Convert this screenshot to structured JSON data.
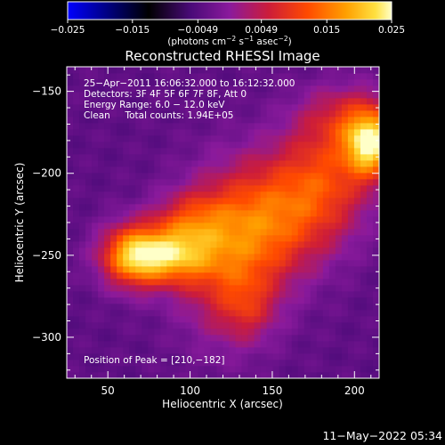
{
  "chart_data": {
    "type": "heatmap",
    "title": "Reconstructed RHESSI Image",
    "xlabel": "Heliocentric X (arcsec)",
    "ylabel": "Heliocentric Y (arcsec)",
    "xlim": [
      25,
      215
    ],
    "ylim": [
      -325,
      -135
    ],
    "x_ticks": [
      50,
      100,
      150,
      200
    ],
    "y_ticks": [
      -150,
      -200,
      -250,
      -300
    ],
    "colorbar": {
      "range": [
        -0.025,
        0.025
      ],
      "tick_values": [
        -0.025,
        -0.015,
        -0.0049,
        0.0049,
        0.015,
        0.025
      ],
      "tick_labels": [
        "−0.025",
        "−0.015",
        "−0.0049",
        "0.0049",
        "0.015",
        "0.025"
      ],
      "unit_base": "(photons cm",
      "unit_exp1": "−2",
      "unit_mid1": " s",
      "unit_exp2": "−1",
      "unit_mid2": " asec",
      "unit_exp3": "−2",
      "unit_end": ")"
    },
    "annotations": [
      "25−Apr−2011 16:06:32.000 to 16:12:32.000",
      "Detectors: 3F 4F 5F 6F 7F 8F, Att 0",
      "Energy Range: 6.0 − 12.0 keV",
      "Clean     Total counts: 1.94E+05"
    ],
    "peak_label": "Position of Peak = [210,−182]",
    "sources": [
      {
        "x": 82,
        "y": -250,
        "sx": 20,
        "sy": 12,
        "value": 0.023
      },
      {
        "x": 63,
        "y": -250,
        "sx": 12,
        "sy": 14,
        "value": 0.012
      },
      {
        "x": 100,
        "y": -228,
        "sx": 16,
        "sy": 12,
        "value": 0.009
      },
      {
        "x": 122,
        "y": -250,
        "sx": 22,
        "sy": 34,
        "value": 0.013
      },
      {
        "x": 150,
        "y": -228,
        "sx": 22,
        "sy": 26,
        "value": 0.013
      },
      {
        "x": 182,
        "y": -205,
        "sx": 20,
        "sy": 26,
        "value": 0.013
      },
      {
        "x": 210,
        "y": -182,
        "sx": 11,
        "sy": 14,
        "value": 0.025
      },
      {
        "x": 196,
        "y": -165,
        "sx": 20,
        "sy": 14,
        "value": 0.008
      },
      {
        "x": 135,
        "y": -282,
        "sx": 12,
        "sy": 14,
        "value": 0.006
      }
    ],
    "background_value": -0.004
  },
  "footer": {
    "timestamp": "11−May−2022 05:34"
  }
}
